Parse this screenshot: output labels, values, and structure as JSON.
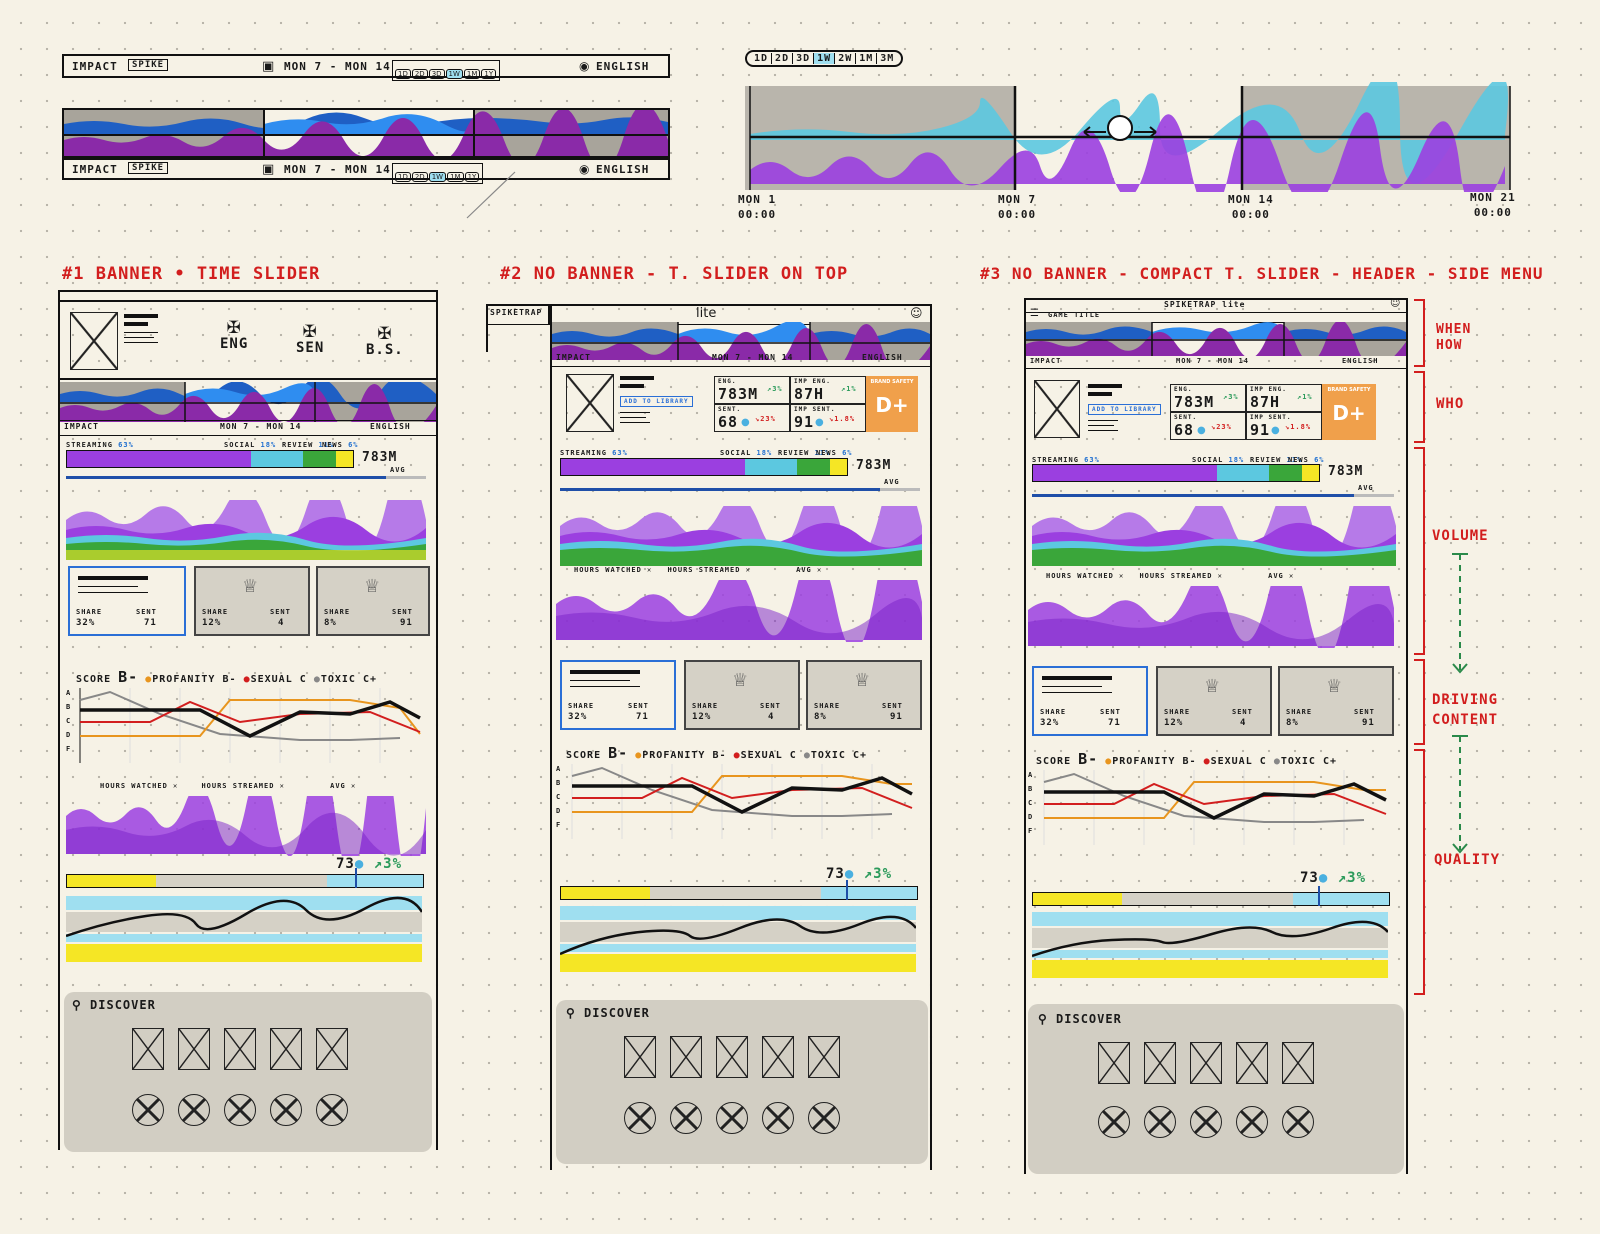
{
  "top_bar": {
    "brand": "IMPACT",
    "brand_badge": "SPIKE",
    "date_range": "MON 7 - MON 14",
    "ranges": [
      "1D",
      "2D",
      "3D",
      "1W",
      "1M",
      "1Y"
    ],
    "language": "ENGLISH"
  },
  "range_selector": {
    "options": [
      "1D",
      "2D",
      "3D",
      "1W",
      "2W",
      "1M",
      "3M"
    ],
    "selected": "1W",
    "date_labels": [
      {
        "day": "MON 1",
        "time": "00:00"
      },
      {
        "day": "MON 7",
        "time": "00:00"
      },
      {
        "day": "MON 14",
        "time": "00:00"
      },
      {
        "day": "MON 21",
        "time": "00:00"
      }
    ]
  },
  "variants": [
    {
      "title": "#1 BANNER • TIME SLIDER"
    },
    {
      "title": "#2 NO BANNER - T. SLIDER ON TOP"
    },
    {
      "title": "#3 NO BANNER - COMPACT T. SLIDER - HEADER - SIDE MENU"
    }
  ],
  "side_labels": {
    "when_how": "WHEN HOW",
    "who": "WHO",
    "volume": "VOLUME",
    "driving": "DRIVING CONTENT",
    "quality": "QUALITY"
  },
  "banner": {
    "eng": "ENG",
    "sen": "SEN",
    "bs": "B.S."
  },
  "header": {
    "brand": "SPIKETRAP",
    "lite": "lite",
    "game_title": "GAME TITLE",
    "app_title": "SPIKETRAP lite"
  },
  "profile": {
    "add_library": "ADD TO LIBRARY"
  },
  "stats": {
    "eng_label": "ENG.",
    "eng_value": "783M",
    "eng_change": "3%",
    "imp_label": "IMP ENG.",
    "imp_value": "87H",
    "imp_change": "1%",
    "sent_label": "SENT.",
    "sent_value": "68",
    "sent_change": "23%",
    "imp_sent_label": "IMP SENT.",
    "imp_sent_value": "91",
    "imp_sent_change": "1.8%",
    "grade_label": "BRAND SAFETY",
    "grade": "D+"
  },
  "volume": {
    "streaming_label": "STREAMING",
    "streaming_pct": "63%",
    "social_label": "SOCIAL",
    "social_pct": "18%",
    "review_label": "REVIEW",
    "review_pct": "11%",
    "news_label": "NEWS",
    "news_pct": "6%",
    "total": "783M",
    "avg": "AVG"
  },
  "hours": {
    "watched": "HOURS WATCHED",
    "streamed": "HOURS STREAMED",
    "avg": "AVG"
  },
  "cards": [
    {
      "share_label": "SHARE",
      "share": "32%",
      "sent_label": "SENT",
      "sent": "71"
    },
    {
      "share_label": "SHARE",
      "share": "12%",
      "sent_label": "SENT",
      "sent": "4"
    },
    {
      "share_label": "SHARE",
      "share": "8%",
      "sent_label": "SENT",
      "sent": "91"
    }
  ],
  "score": {
    "label": "SCORE",
    "grade": "B-",
    "legend": [
      {
        "name": "PROFANITY",
        "grade": "B-",
        "color": "#e8951e"
      },
      {
        "name": "SEXUAL",
        "grade": "C",
        "color": "#d21e1e"
      },
      {
        "name": "TOXIC",
        "grade": "C+",
        "color": "#888888"
      }
    ],
    "axis": [
      "A",
      "B",
      "C",
      "D",
      "F"
    ],
    "score_tag": "SCORE"
  },
  "quality": {
    "value": "73",
    "change": "3%"
  },
  "discover": {
    "label": "DISCOVER"
  },
  "colors": {
    "purple": "#9b3fe0",
    "blue": "#1f6fd0",
    "cyan": "#5cc8e0",
    "green": "#3aa63a",
    "yellow": "#f5e625",
    "red": "#d21e1e"
  }
}
